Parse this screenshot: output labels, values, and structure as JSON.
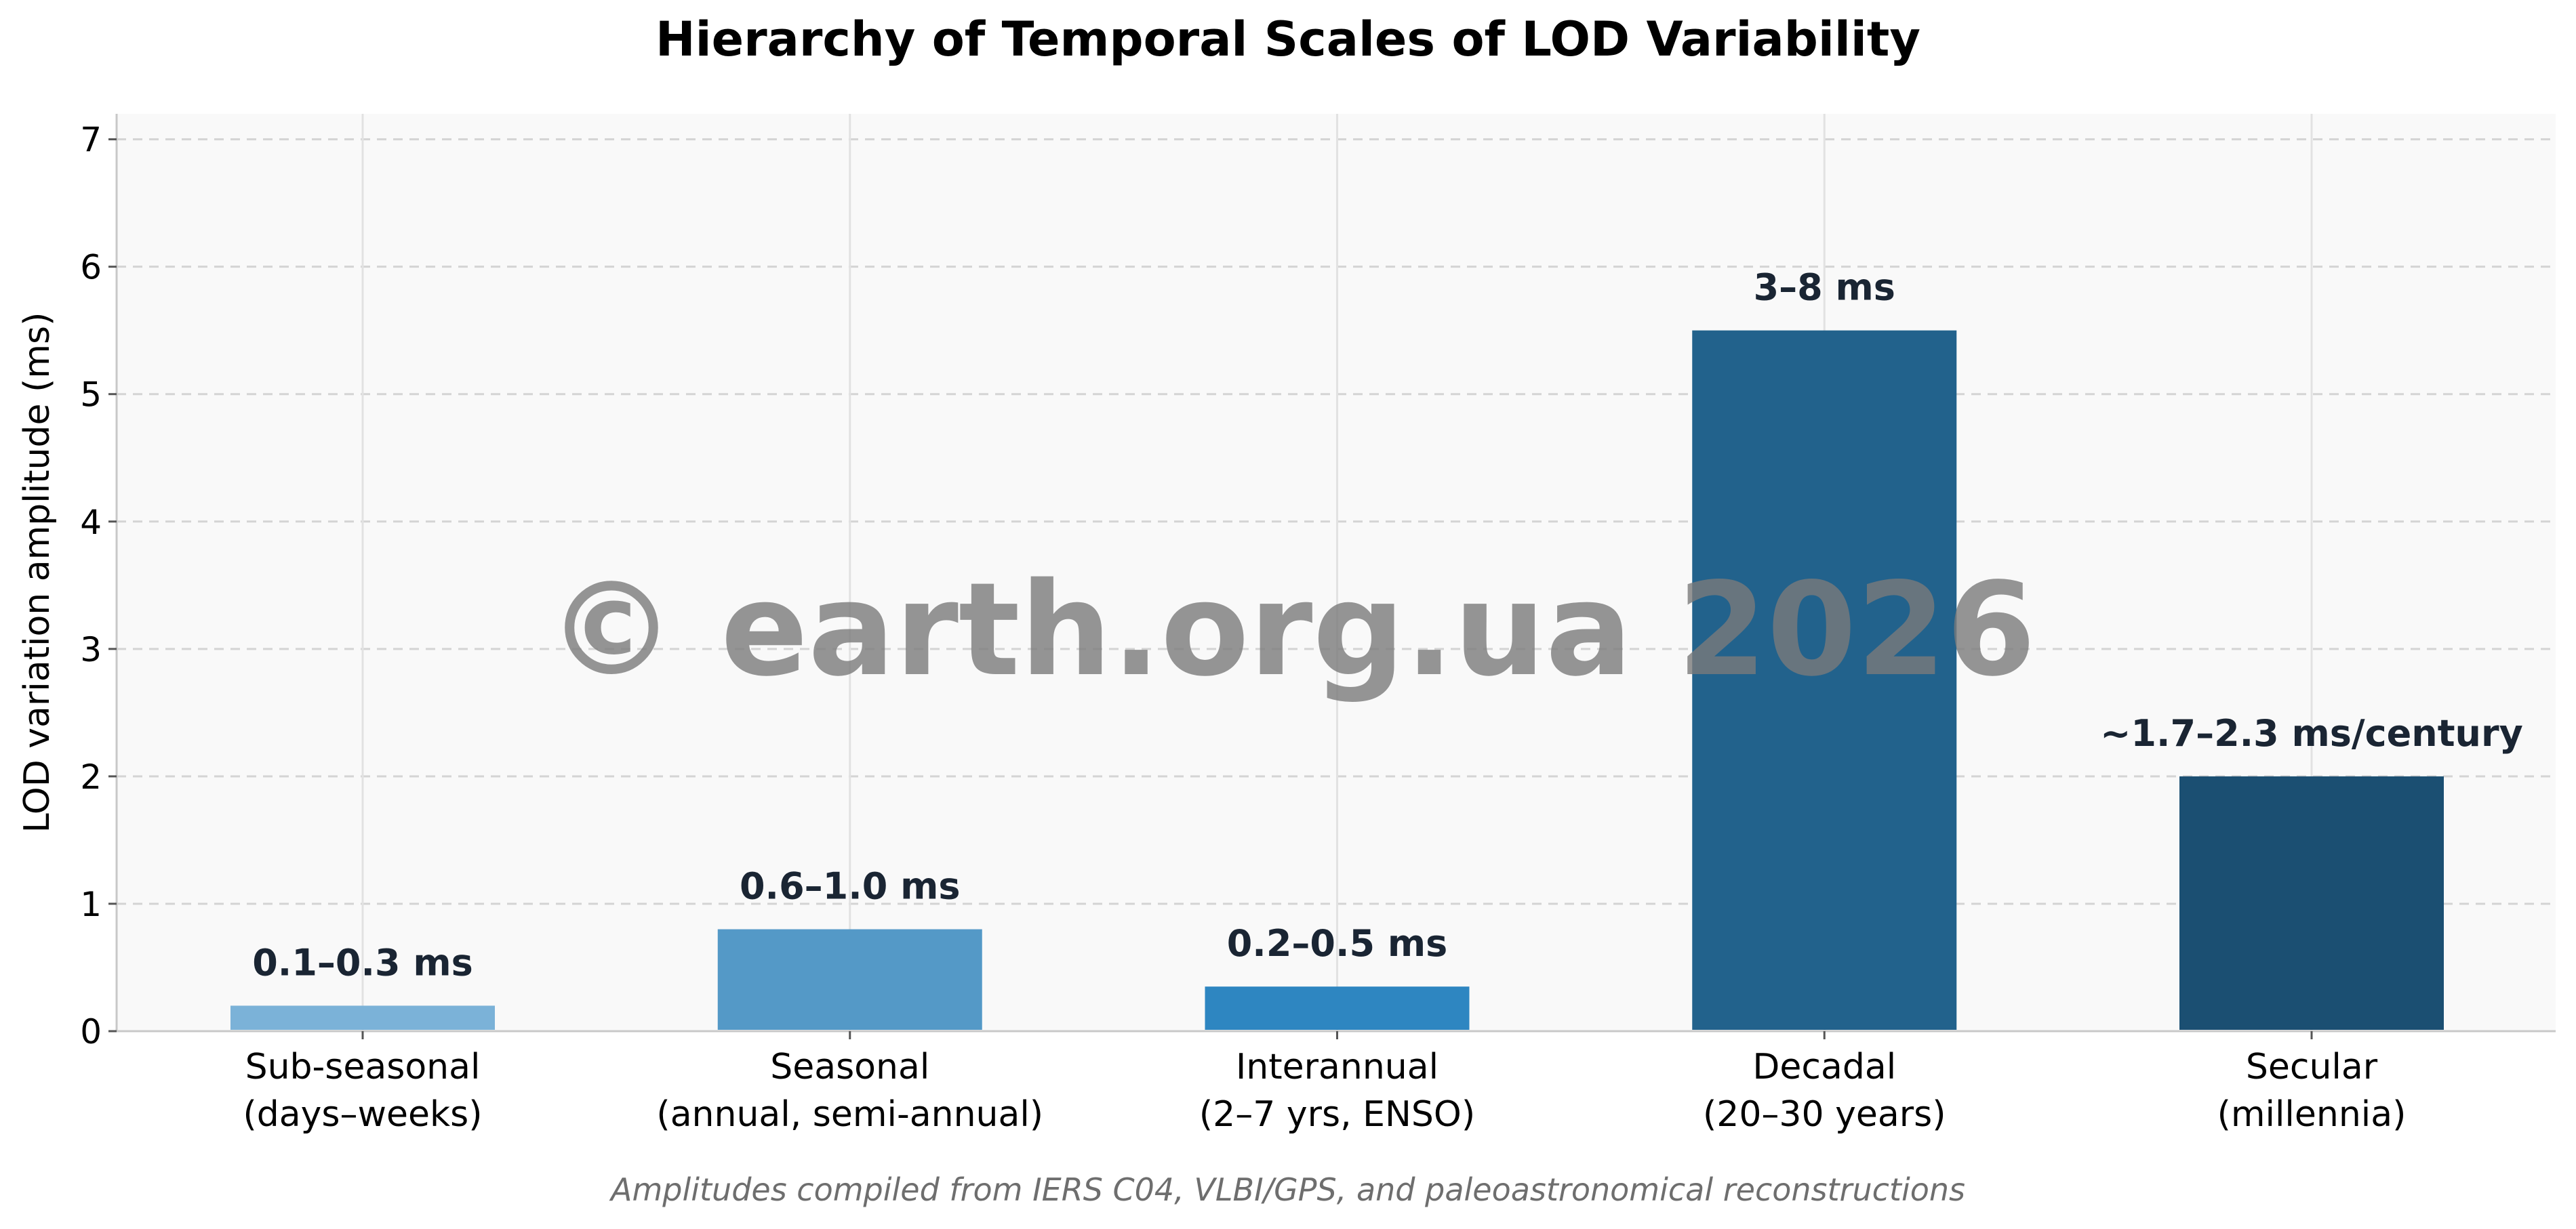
{
  "chart_data": {
    "type": "bar",
    "title": "Hierarchy of Temporal Scales of LOD Variability",
    "ylabel": "LOD variation amplitude (ms)",
    "xlabel": "",
    "ylim": [
      0,
      7.2
    ],
    "yticks": [
      0,
      1,
      2,
      3,
      4,
      5,
      6,
      7
    ],
    "grid": true,
    "categories": [
      [
        "Sub-seasonal",
        "(days–weeks)"
      ],
      [
        "Seasonal",
        "(annual, semi-annual)"
      ],
      [
        "Interannual",
        "(2–7 yrs, ENSO)"
      ],
      [
        "Decadal",
        "(20–30 years)"
      ],
      [
        "Secular",
        "(millennia)"
      ]
    ],
    "values": [
      0.2,
      0.8,
      0.35,
      5.5,
      2.0
    ],
    "bar_labels": [
      "0.1–0.3 ms",
      "0.6–1.0 ms",
      "0.2–0.5 ms",
      "3–8 ms",
      "~1.7–2.3 ms/century"
    ],
    "colors": [
      "#7bb2d8",
      "#5499c7",
      "#2e86c1",
      "#22628c",
      "#1b4f72"
    ],
    "caption": "Amplitudes compiled from IERS C04, VLBI/GPS, and paleoastronomical reconstructions",
    "watermark": "© earth.org.ua 2026"
  }
}
